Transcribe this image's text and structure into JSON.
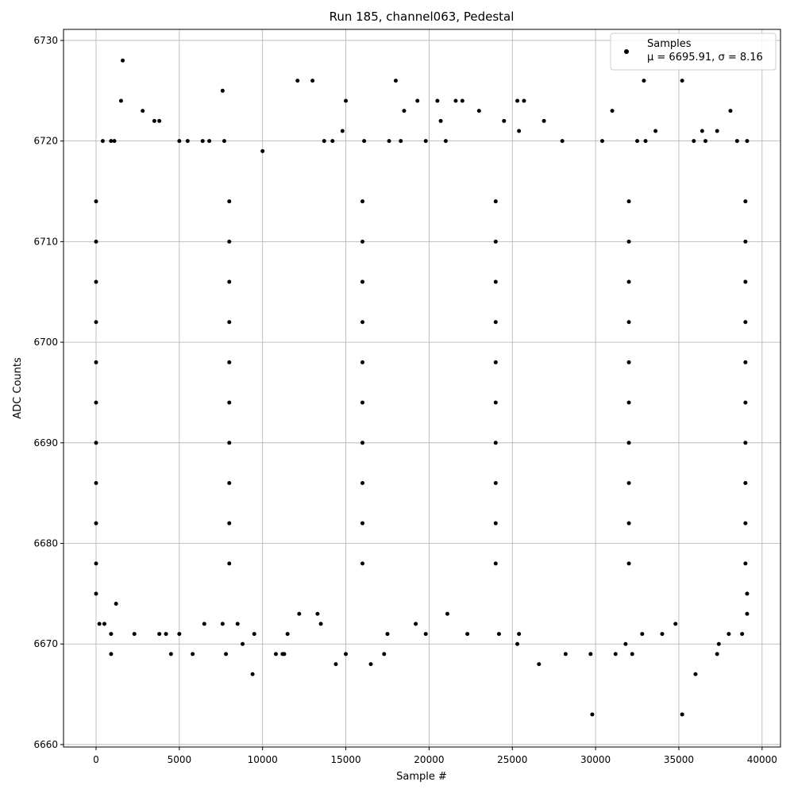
{
  "chart_data": {
    "type": "scatter",
    "title": "Run 185, channel063, Pedestal",
    "xlabel": "Sample #",
    "ylabel": "ADC Counts",
    "xlim": [
      -1955,
      41106
    ],
    "ylim": [
      6659.76,
      6731.1
    ],
    "xticks": [
      0,
      5000,
      10000,
      15000,
      20000,
      25000,
      30000,
      35000,
      40000
    ],
    "yticks": [
      6660,
      6670,
      6680,
      6690,
      6700,
      6710,
      6720,
      6730
    ],
    "grid": true,
    "legend": "upper right",
    "legend_note": "μ = 6695.91, σ = 8.16",
    "series": [
      {
        "name": "Samples",
        "color": "#000000",
        "x": [
          0,
          0,
          0,
          0,
          0,
          0,
          0,
          0,
          0,
          0,
          8000,
          8000,
          8000,
          8000,
          8000,
          8000,
          8000,
          8000,
          8000,
          8000,
          16000,
          16000,
          16000,
          16000,
          16000,
          16000,
          16000,
          16000,
          16000,
          16000,
          24000,
          24000,
          24000,
          24000,
          24000,
          24000,
          24000,
          24000,
          24000,
          24000,
          32000,
          32000,
          32000,
          32000,
          32000,
          32000,
          32000,
          32000,
          32000,
          32000,
          39000,
          39000,
          39000,
          39000,
          39000,
          39000,
          39000,
          39000,
          39000,
          39000,
          1600,
          1500,
          2800,
          3500,
          3800,
          7600,
          12100,
          13000,
          14800,
          15000,
          18000,
          18500,
          19300,
          20500,
          20700,
          21600,
          22000,
          23000,
          24500,
          25300,
          25700,
          25400,
          26900,
          31000,
          32900,
          33600,
          35200,
          36400,
          37300,
          38100,
          400,
          900,
          1100,
          5000,
          5500,
          6400,
          6800,
          7700,
          10000,
          13700,
          14200,
          16100,
          17600,
          18300,
          19800,
          21000,
          28000,
          30400,
          32500,
          33000,
          35900,
          36600,
          38500,
          39100,
          0,
          200,
          500,
          900,
          900,
          1200,
          2300,
          3800,
          4200,
          4500,
          5000,
          5800,
          6500,
          7600,
          7800,
          8500,
          8800,
          9400,
          9500,
          10800,
          11200,
          11300,
          11500,
          12200,
          13300,
          13500,
          14400,
          15000,
          16500,
          17300,
          17500,
          19200,
          19800,
          21100,
          22300,
          24200,
          25300,
          25400,
          26600,
          28200,
          29700,
          29800,
          31200,
          31800,
          32200,
          32800,
          34000,
          34800,
          35200,
          36000,
          37300,
          37400,
          38000,
          38800,
          39100,
          39100
        ],
        "values": [
          6678,
          6682,
          6686,
          6690,
          6694,
          6698,
          6702,
          6706,
          6710,
          6714,
          6678,
          6682,
          6686,
          6690,
          6694,
          6698,
          6702,
          6706,
          6710,
          6714,
          6678,
          6682,
          6686,
          6690,
          6694,
          6698,
          6702,
          6706,
          6710,
          6714,
          6678,
          6682,
          6686,
          6690,
          6694,
          6698,
          6702,
          6706,
          6710,
          6714,
          6678,
          6682,
          6686,
          6690,
          6694,
          6698,
          6702,
          6706,
          6710,
          6714,
          6678,
          6682,
          6686,
          6690,
          6694,
          6698,
          6702,
          6706,
          6710,
          6714,
          6728,
          6724,
          6723,
          6722,
          6722,
          6725,
          6726,
          6726,
          6721,
          6724,
          6726,
          6723,
          6724,
          6724,
          6722,
          6724,
          6724,
          6723,
          6722,
          6724,
          6724,
          6721,
          6722,
          6723,
          6726,
          6721,
          6726,
          6721,
          6721,
          6723,
          6720,
          6720,
          6720,
          6720,
          6720,
          6720,
          6720,
          6720,
          6719,
          6720,
          6720,
          6720,
          6720,
          6720,
          6720,
          6720,
          6720,
          6720,
          6720,
          6720,
          6720,
          6720,
          6720,
          6720,
          6675,
          6672,
          6672,
          6669,
          6671,
          6674,
          6671,
          6671,
          6671,
          6669,
          6671,
          6669,
          6672,
          6672,
          6669,
          6672,
          6670,
          6667,
          6671,
          6669,
          6669,
          6669,
          6671,
          6673,
          6673,
          6672,
          6668,
          6669,
          6668,
          6669,
          6671,
          6672,
          6671,
          6673,
          6671,
          6671,
          6670,
          6671,
          6668,
          6669,
          6669,
          6663,
          6669,
          6670,
          6669,
          6671,
          6671,
          6672,
          6663,
          6667,
          6669,
          6670,
          6671,
          6671,
          6673,
          6675
        ]
      }
    ]
  }
}
